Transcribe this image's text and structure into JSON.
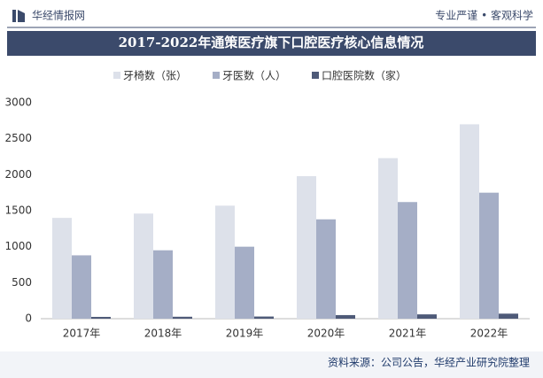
{
  "header": {
    "brand": "华经情报网",
    "slogan": "专业严谨 • 客观科学"
  },
  "chart_data": {
    "type": "bar",
    "title": "2017-2022年通策医疗旗下口腔医疗核心信息情况",
    "categories": [
      "2017年",
      "2018年",
      "2019年",
      "2020年",
      "2021年",
      "2022年"
    ],
    "series": [
      {
        "name": "牙椅数（张）",
        "color": "#dde1ea",
        "values": [
          1400,
          1460,
          1570,
          1980,
          2230,
          2700
        ]
      },
      {
        "name": "牙医数（人）",
        "color": "#a5aec6",
        "values": [
          880,
          950,
          1000,
          1380,
          1620,
          1750
        ]
      },
      {
        "name": "口腔医院数（家）",
        "color": "#4e5a78",
        "values": [
          25,
          27,
          30,
          50,
          60,
          70
        ]
      }
    ],
    "ylim": [
      0,
      3000
    ],
    "yticks": [
      0,
      500,
      1000,
      1500,
      2000,
      2500,
      3000
    ],
    "source": "资料来源：公司公告，华经产业研究院整理"
  }
}
